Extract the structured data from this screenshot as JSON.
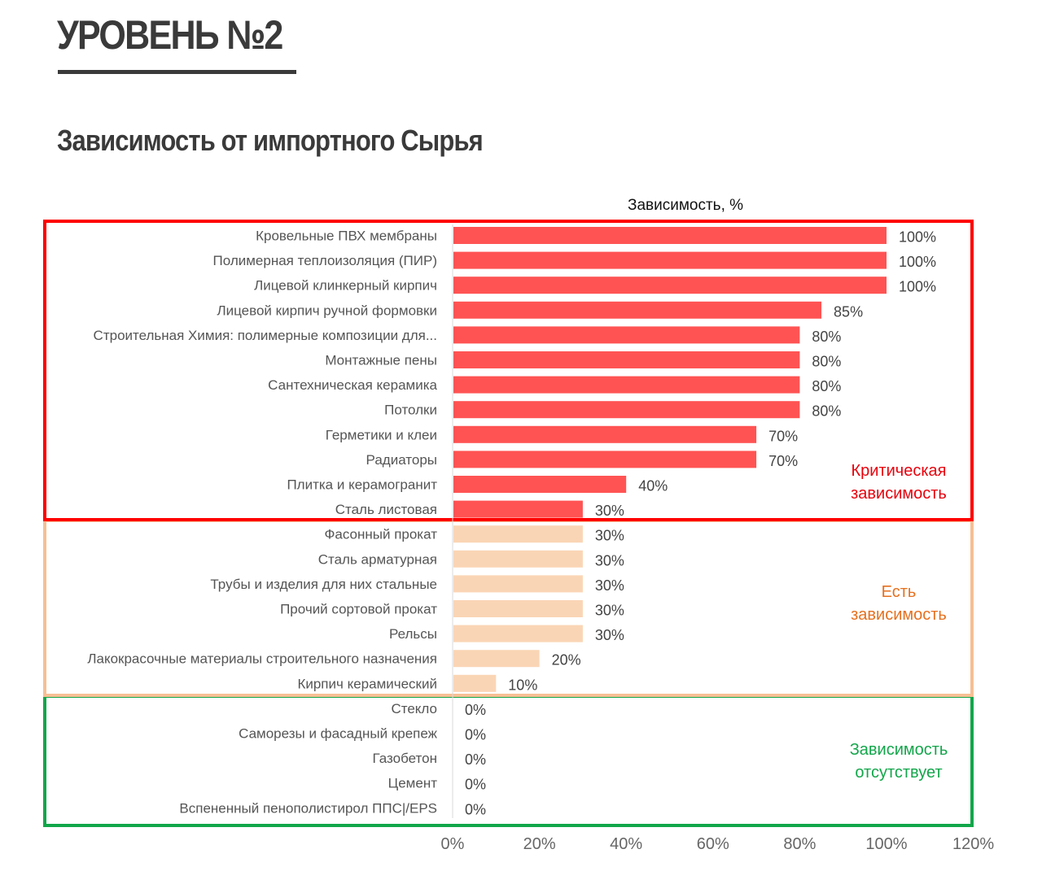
{
  "header": {
    "level_title": "УРОВЕНЬ №2",
    "section_title": "Зависимость от импортного Сырья"
  },
  "colors": {
    "critical_bar": "#ff5353",
    "moderate_bar": "#fad5b5",
    "critical_frame": "#ff0000",
    "moderate_frame": "#f6bf94",
    "none_frame": "#12a64a",
    "critical_text": "#e8000b",
    "moderate_text": "#e6701e",
    "none_text": "#12a64a"
  },
  "chart_data": {
    "type": "bar",
    "orientation": "horizontal",
    "title": "Зависимость, %",
    "xlabel": "Зависимость, %",
    "ylabel": "",
    "xlim": [
      0,
      120
    ],
    "x_ticks": [
      "0%",
      "20%",
      "40%",
      "60%",
      "80%",
      "100%",
      "120%"
    ],
    "x_tick_values": [
      0,
      20,
      40,
      60,
      80,
      100,
      120
    ],
    "grid": false,
    "categories": [
      "Кровельные ПВХ мембраны",
      "Полимерная теплоизоляция (ПИР)",
      "Лицевой клинкерный кирпич",
      "Лицевой кирпич ручной формовки",
      "Строительная Химия: полимерные композиции для...",
      "Монтажные пены",
      "Сантехническая керамика",
      "Потолки",
      "Герметики и клеи",
      "Радиаторы",
      "Плитка и керамогранит",
      "Сталь листовая",
      "Фасонный прокат",
      "Сталь арматурная",
      "Трубы и изделия для них стальные",
      "Прочий сортовой прокат",
      "Рельсы",
      "Лакокрасочные материалы строительного назначения",
      "Кирпич керамический",
      "Стекло",
      "Саморезы и фасадный крепеж",
      "Газобетон",
      "Цемент",
      "Вспененный пенополистирол ППС|/EPS"
    ],
    "values": [
      100,
      100,
      100,
      85,
      80,
      80,
      80,
      80,
      70,
      70,
      40,
      30,
      30,
      30,
      30,
      30,
      30,
      20,
      10,
      0,
      0,
      0,
      0,
      0
    ],
    "value_labels": [
      "100%",
      "100%",
      "100%",
      "85%",
      "80%",
      "80%",
      "80%",
      "80%",
      "70%",
      "70%",
      "40%",
      "30%",
      "30%",
      "30%",
      "30%",
      "30%",
      "30%",
      "20%",
      "10%",
      "0%",
      "0%",
      "0%",
      "0%",
      "0%"
    ],
    "groups": [
      {
        "name": "critical",
        "label_line1": "Критическая",
        "label_line2": "зависимость",
        "first_index": 0,
        "last_index": 11
      },
      {
        "name": "moderate",
        "label_line1": "Есть",
        "label_line2": "зависимость",
        "first_index": 12,
        "last_index": 18
      },
      {
        "name": "none",
        "label_line1": "Зависимость",
        "label_line2": "отсутствует",
        "first_index": 19,
        "last_index": 23
      }
    ]
  }
}
